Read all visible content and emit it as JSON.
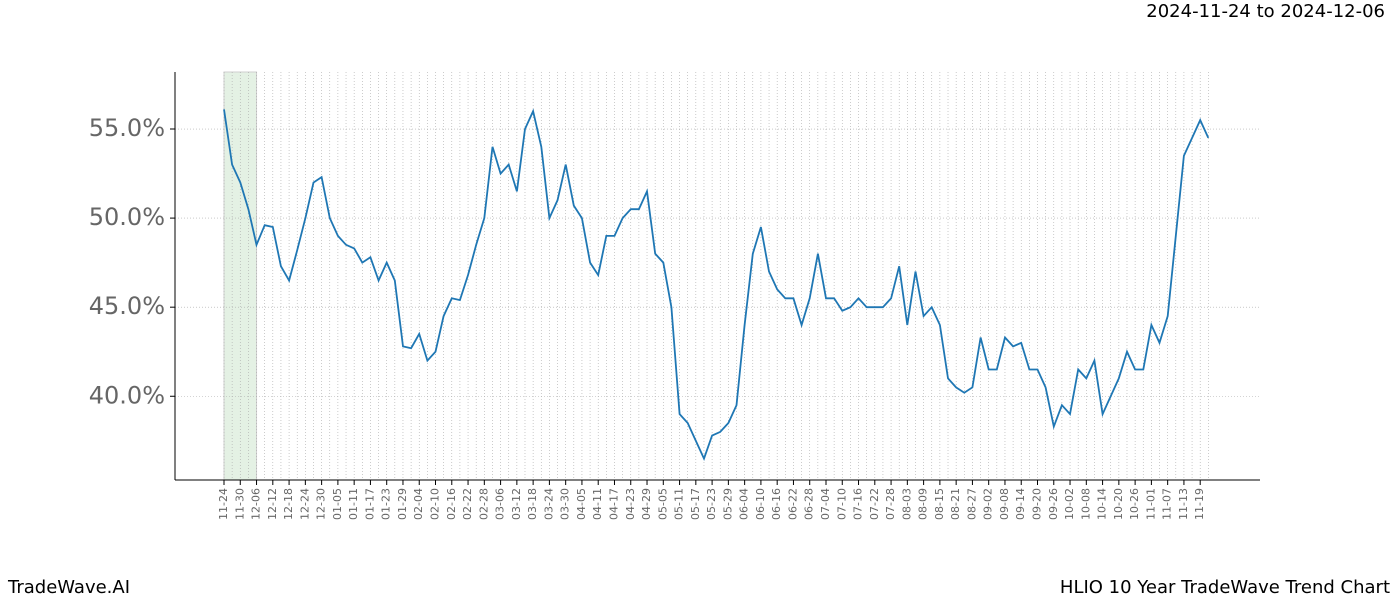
{
  "header": "2024-11-24 to 2024-12-06",
  "footer_left": "TradeWave.AI",
  "footer_right": "HLIO 10 Year TradeWave Trend Chart",
  "chart_data": {
    "type": "line",
    "color": "#1f77b4",
    "grid": true,
    "highlight": [
      0,
      4
    ],
    "categories": [
      "11-24",
      null,
      "11-30",
      null,
      "12-06",
      null,
      "12-12",
      null,
      "12-18",
      null,
      "12-24",
      null,
      "12-30",
      null,
      "01-05",
      null,
      "01-11",
      null,
      "01-17",
      null,
      "01-23",
      null,
      "01-29",
      null,
      "02-04",
      null,
      "02-10",
      null,
      "02-16",
      null,
      "02-22",
      null,
      "02-28",
      null,
      "03-06",
      null,
      "03-12",
      null,
      "03-18",
      null,
      "03-24",
      null,
      "03-30",
      null,
      "04-05",
      null,
      "04-11",
      null,
      "04-17",
      null,
      "04-23",
      null,
      "04-29",
      null,
      "05-05",
      null,
      "05-11",
      null,
      "05-17",
      null,
      "05-23",
      null,
      "05-29",
      null,
      "06-04",
      null,
      "06-10",
      null,
      "06-16",
      null,
      "06-22",
      null,
      "06-28",
      null,
      "07-04",
      null,
      "07-10",
      null,
      "07-16",
      null,
      "07-22",
      null,
      "07-28",
      null,
      "08-03",
      null,
      "08-09",
      null,
      "08-15",
      null,
      "08-21",
      null,
      "08-27",
      null,
      "09-02",
      null,
      "09-08",
      null,
      "09-14",
      null,
      "09-20",
      null,
      "09-26",
      null,
      "10-02",
      null,
      "10-08",
      null,
      "10-14",
      null,
      "10-20",
      null,
      "10-26",
      null,
      "11-01",
      null,
      "11-07",
      null,
      "11-13",
      null,
      "11-19",
      null
    ],
    "values": [
      56.1,
      53.0,
      52.0,
      50.5,
      48.5,
      49.6,
      49.5,
      47.3,
      46.5,
      48.2,
      50.0,
      52.0,
      52.3,
      50.0,
      49.0,
      48.5,
      48.3,
      47.5,
      47.8,
      46.5,
      47.5,
      46.5,
      42.8,
      42.7,
      43.5,
      42.0,
      42.5,
      44.5,
      45.5,
      45.4,
      46.8,
      48.5,
      50.0,
      54.0,
      52.5,
      53.0,
      51.5,
      55.0,
      56.0,
      54.0,
      50.0,
      51.0,
      53.0,
      50.7,
      50.0,
      47.5,
      46.8,
      49.0,
      49.0,
      50.0,
      50.5,
      50.5,
      51.5,
      48.0,
      47.5,
      45.0,
      39.0,
      38.5,
      37.5,
      36.5,
      37.8,
      38.0,
      38.5,
      39.5,
      44.0,
      48.0,
      49.5,
      47.0,
      46.0,
      45.5,
      45.5,
      44.0,
      45.5,
      48.0,
      45.5,
      45.5,
      44.8,
      45.0,
      45.5,
      45.0,
      45.0,
      45.0,
      45.5,
      47.3,
      44.0,
      47.0,
      44.5,
      45.0,
      44.0,
      41.0,
      40.5,
      40.2,
      40.5,
      43.3,
      41.5,
      41.5,
      43.3,
      42.8,
      43.0,
      41.5,
      41.5,
      40.5,
      38.3,
      39.5,
      39.0,
      41.5,
      41.0,
      42.0,
      39.0,
      40.0,
      41.0,
      42.5,
      41.5,
      41.5,
      44.0,
      43.0,
      44.5,
      49.0,
      53.5,
      54.5,
      55.5,
      54.5
    ],
    "ylim": [
      35.3,
      58.2
    ],
    "yticks": [
      {
        "value": 40,
        "label": "40.0%"
      },
      {
        "value": 45,
        "label": "45.0%"
      },
      {
        "value": 50,
        "label": "50.0%"
      },
      {
        "value": 55,
        "label": "55.0%"
      }
    ]
  }
}
